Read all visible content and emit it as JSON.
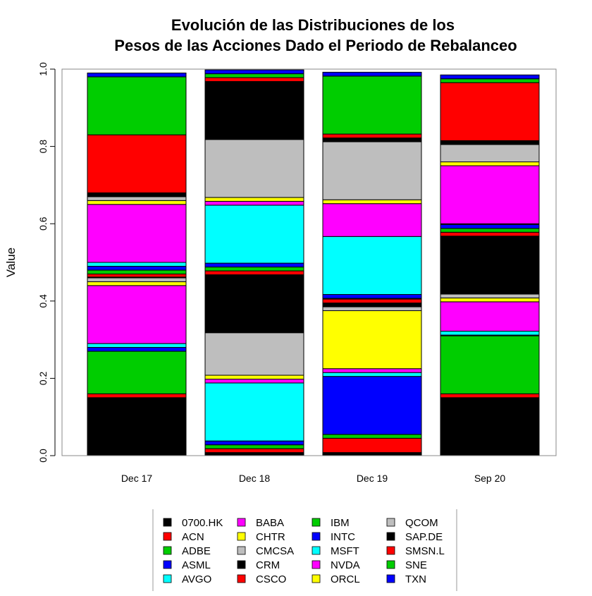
{
  "chart_data": {
    "type": "bar",
    "stacked": true,
    "title": [
      "Evolución de las Distribuciones de los",
      "Pesos de las Acciones Dado el Periodo de Rebalanceo"
    ],
    "xlabel": "",
    "ylabel": "Value",
    "ylim": [
      0,
      1
    ],
    "yticks": [
      "0.0",
      "0.2",
      "0.4",
      "0.6",
      "0.8",
      "1.0"
    ],
    "grid": false,
    "legend_position": "bottom",
    "categories": [
      "Dec 17",
      "Dec 18",
      "Dec 19",
      "Sep 20"
    ],
    "series": [
      {
        "name": "0700.HK",
        "color": "#000000",
        "values": [
          0.15,
          0.008,
          0.008,
          0.15
        ]
      },
      {
        "name": "ACN",
        "color": "#ff0000",
        "values": [
          0.01,
          0.01,
          0.037,
          0.01
        ]
      },
      {
        "name": "ADBE",
        "color": "#00cd00",
        "values": [
          0.11,
          0.01,
          0.01,
          0.15
        ]
      },
      {
        "name": "ASML",
        "color": "#0000ff",
        "values": [
          0.01,
          0.01,
          0.15,
          0.002
        ]
      },
      {
        "name": "AVGO",
        "color": "#00ffff",
        "values": [
          0.01,
          0.15,
          0.01,
          0.01
        ]
      },
      {
        "name": "BABA",
        "color": "#ff00ff",
        "values": [
          0.15,
          0.01,
          0.01,
          0.076
        ]
      },
      {
        "name": "CHTR",
        "color": "#ffff00",
        "values": [
          0.01,
          0.01,
          0.15,
          0.01
        ]
      },
      {
        "name": "CMCSA",
        "color": "#bebebe",
        "values": [
          0.01,
          0.11,
          0.01,
          0.01
        ]
      },
      {
        "name": "CRM",
        "color": "#000000",
        "values": [
          0.002,
          0.15,
          0.01,
          0.15
        ]
      },
      {
        "name": "CSCO",
        "color": "#ff0000",
        "values": [
          0.008,
          0.01,
          0.01,
          0.01
        ]
      },
      {
        "name": "IBM",
        "color": "#00cd00",
        "values": [
          0.01,
          0.01,
          0.002,
          0.01
        ]
      },
      {
        "name": "INTC",
        "color": "#0000ff",
        "values": [
          0.01,
          0.01,
          0.01,
          0.01
        ]
      },
      {
        "name": "MSFT",
        "color": "#00ffff",
        "values": [
          0.01,
          0.15,
          0.15,
          0.002
        ]
      },
      {
        "name": "NVDA",
        "color": "#ff00ff",
        "values": [
          0.15,
          0.01,
          0.085,
          0.15
        ]
      },
      {
        "name": "ORCL",
        "color": "#ffff00",
        "values": [
          0.01,
          0.01,
          0.01,
          0.01
        ]
      },
      {
        "name": "QCOM",
        "color": "#bebebe",
        "values": [
          0.01,
          0.15,
          0.15,
          0.045
        ]
      },
      {
        "name": "SAP.DE",
        "color": "#000000",
        "values": [
          0.01,
          0.15,
          0.01,
          0.01
        ]
      },
      {
        "name": "SMSN.L",
        "color": "#ff0000",
        "values": [
          0.15,
          0.01,
          0.01,
          0.15
        ]
      },
      {
        "name": "SNE",
        "color": "#00cd00",
        "values": [
          0.15,
          0.01,
          0.15,
          0.01
        ]
      },
      {
        "name": "TXN",
        "color": "#0000ff",
        "values": [
          0.01,
          0.01,
          0.01,
          0.01
        ]
      }
    ]
  }
}
